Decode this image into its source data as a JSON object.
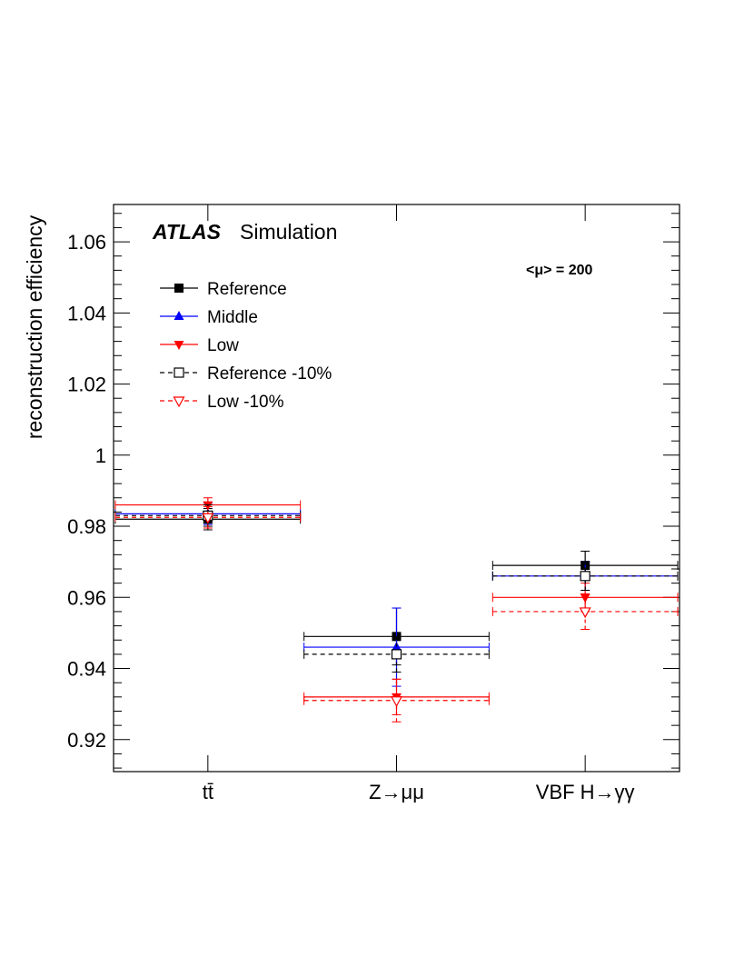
{
  "chart_data": {
    "type": "scatter",
    "title": "",
    "experiment": "ATLAS",
    "subtitle": "Simulation",
    "annotation": "<μ> = 200",
    "xlabel": "",
    "ylabel": "reconstruction efficiency",
    "categories": [
      "tt̄",
      "Z→μμ",
      "VBF H→γγ"
    ],
    "ylim": [
      0.911,
      1.0705
    ],
    "yticks": [
      "0.92",
      "0.94",
      "0.96",
      "0.98",
      "1",
      "1.02",
      "1.04",
      "1.06"
    ],
    "ytick_values": [
      0.92,
      0.94,
      0.96,
      0.98,
      1.0,
      1.02,
      1.04,
      1.06
    ],
    "legend_position": "top-left",
    "series": [
      {
        "name": "Reference",
        "color": "#000000",
        "marker": "filled-square",
        "dash": false,
        "values": [
          0.982,
          0.949,
          0.969
        ],
        "errors": [
          0.003,
          0.008,
          0.004
        ]
      },
      {
        "name": "Middle",
        "color": "#0000ff",
        "marker": "filled-triangle-up",
        "dash": false,
        "values": [
          0.9835,
          0.946,
          0.966
        ],
        "errors": [
          0.003,
          0.011,
          0.004
        ]
      },
      {
        "name": "Low",
        "color": "#ff0000",
        "marker": "filled-triangle-down",
        "dash": false,
        "values": [
          0.986,
          0.932,
          0.96
        ],
        "errors": [
          0.002,
          0.005,
          0.004
        ]
      },
      {
        "name": "Reference -10%",
        "color": "#000000",
        "marker": "open-square",
        "dash": true,
        "values": [
          0.983,
          0.944,
          0.966
        ],
        "errors": [
          0.003,
          0.005,
          0.004
        ]
      },
      {
        "name": "Low -10%",
        "color": "#ff0000",
        "marker": "open-triangle-down",
        "dash": true,
        "values": [
          0.9825,
          0.931,
          0.956
        ],
        "errors": [
          0.003,
          0.006,
          0.005
        ]
      }
    ]
  }
}
